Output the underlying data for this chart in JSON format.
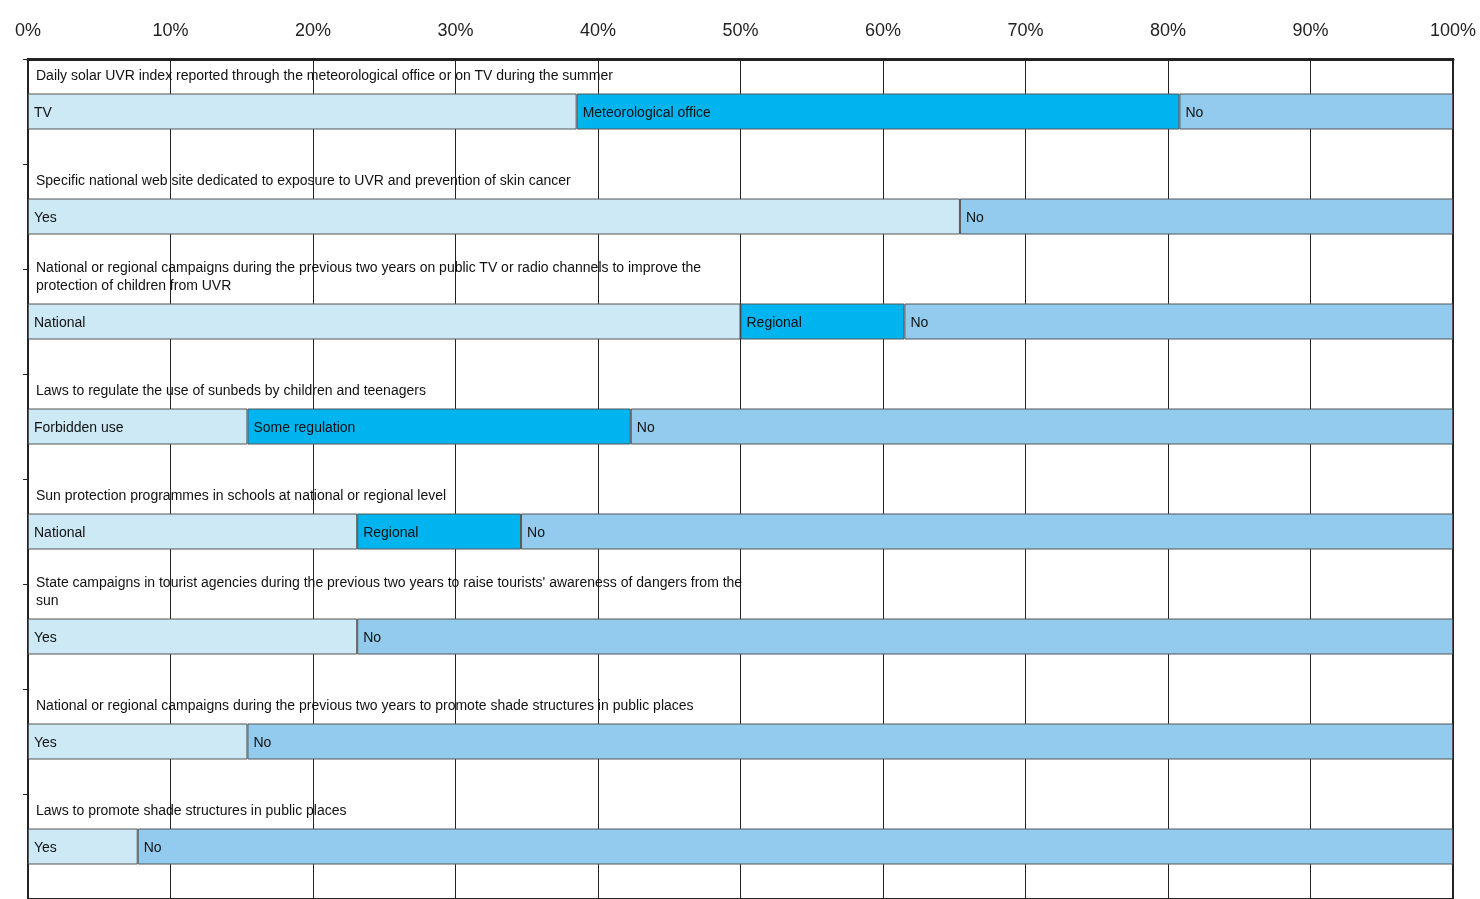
{
  "chart_data": {
    "type": "bar",
    "orientation": "horizontal",
    "stacked": true,
    "categories": [
      "Daily solar UVR index reported through the meteorological office or on TV during the summer",
      "Specific national web site dedicated to exposure to UVR and prevention of skin cancer",
      "National or regional campaigns during the previous two years on public TV or radio channels to improve the protection of children from UVR",
      "Laws to regulate the use of sunbeds by children and teenagers",
      "Sun protection programmes in schools at national or regional level",
      "State campaigns in tourist agencies during the previous two years to raise tourists' awareness of dangers from the sun",
      "National or regional campaigns during the previous two years to promote shade structures in public places",
      "Laws to promote shade structures in public places"
    ],
    "series": [
      {
        "color": "#cce9f5",
        "values": [
          38.5,
          65.4,
          50,
          15.4,
          23.1,
          23.1,
          15.4,
          7.7
        ]
      },
      {
        "color": "#00b4ef",
        "values": [
          42.3,
          null,
          11.5,
          26.9,
          11.5,
          null,
          null,
          null
        ]
      },
      {
        "color": "#92cbed",
        "values": [
          19.2,
          34.6,
          38.5,
          57.7,
          65.4,
          76.9,
          84.6,
          92.3
        ]
      }
    ],
    "xlim": [
      0,
      100
    ],
    "xticks": [
      {
        "value": 0,
        "label": "0%"
      },
      {
        "value": 10,
        "label": "10%"
      },
      {
        "value": 20,
        "label": "20%"
      },
      {
        "value": 30,
        "label": "30%"
      },
      {
        "value": 40,
        "label": "40%"
      },
      {
        "value": 50,
        "label": "50%"
      },
      {
        "value": 60,
        "label": "60%"
      },
      {
        "value": 70,
        "label": "70%"
      },
      {
        "value": 80,
        "label": "80%"
      },
      {
        "value": 90,
        "label": "90%"
      },
      {
        "value": 100,
        "label": "100%"
      }
    ],
    "grid": "x",
    "annotations": [
      {
        "text": "TV",
        "x": 0,
        "y": "Daily solar UVR index reported through the meteorological office or on TV during the summer"
      },
      {
        "text": "Meteorological office",
        "x": 38.5,
        "y": "Daily solar UVR index reported through the meteorological office or on TV during the summer"
      },
      {
        "text": "No",
        "x": 80.8,
        "y": "Daily solar UVR index reported through the meteorological office or on TV during the summer"
      },
      {
        "text": "Yes",
        "x": 0,
        "y": "Specific national web site dedicated to exposure to UVR and prevention of skin cancer"
      },
      {
        "text": "No",
        "x": 65.4,
        "y": "Specific national web site dedicated to exposure to UVR and prevention of skin cancer"
      },
      {
        "text": "National",
        "x": 0,
        "y": "National or regional campaigns during the previous two years on public TV or radio channels to improve the protection of children from UVR"
      },
      {
        "text": "Regional",
        "x": 50,
        "y": "National or regional campaigns during the previous two years on public TV or radio channels to improve the protection of children from UVR"
      },
      {
        "text": "No",
        "x": 61.5,
        "y": "National or regional campaigns during the previous two years on public TV or radio channels to improve the protection of children from UVR"
      },
      {
        "text": "Forbidden use",
        "x": 0,
        "y": "Laws to regulate the use of sunbeds by children and teenagers"
      },
      {
        "text": "Some regulation",
        "x": 15.4,
        "y": "Laws to regulate the use of sunbeds by children and teenagers"
      },
      {
        "text": "No",
        "x": 42.3,
        "y": "Laws to regulate the use of sunbeds by children and teenagers"
      },
      {
        "text": "National",
        "x": 0,
        "y": "Sun protection programmes in schools at national or regional level"
      },
      {
        "text": "Regional",
        "x": 23.1,
        "y": "Sun protection programmes in schools at national or regional level"
      },
      {
        "text": "No",
        "x": 34.6,
        "y": "Sun protection programmes in schools at national or regional level"
      },
      {
        "text": "Yes",
        "x": 0,
        "y": "State campaigns in tourist agencies during the previous two years to raise tourists' awareness of dangers from the sun"
      },
      {
        "text": "No",
        "x": 23.1,
        "y": "State campaigns in tourist agencies during the previous two years to raise tourists' awareness of dangers from the sun"
      },
      {
        "text": "Yes",
        "x": 0,
        "y": "National or regional campaigns during the previous two years to promote shade structures in public places"
      },
      {
        "text": "No",
        "x": 15.4,
        "y": "National or regional campaigns during the previous two years to promote shade structures in public places"
      },
      {
        "text": "Yes",
        "x": 0,
        "y": "Laws to promote shade structures in public places"
      },
      {
        "text": "No",
        "x": 7.7,
        "y": "Laws to promote shade structures in public places"
      }
    ]
  }
}
